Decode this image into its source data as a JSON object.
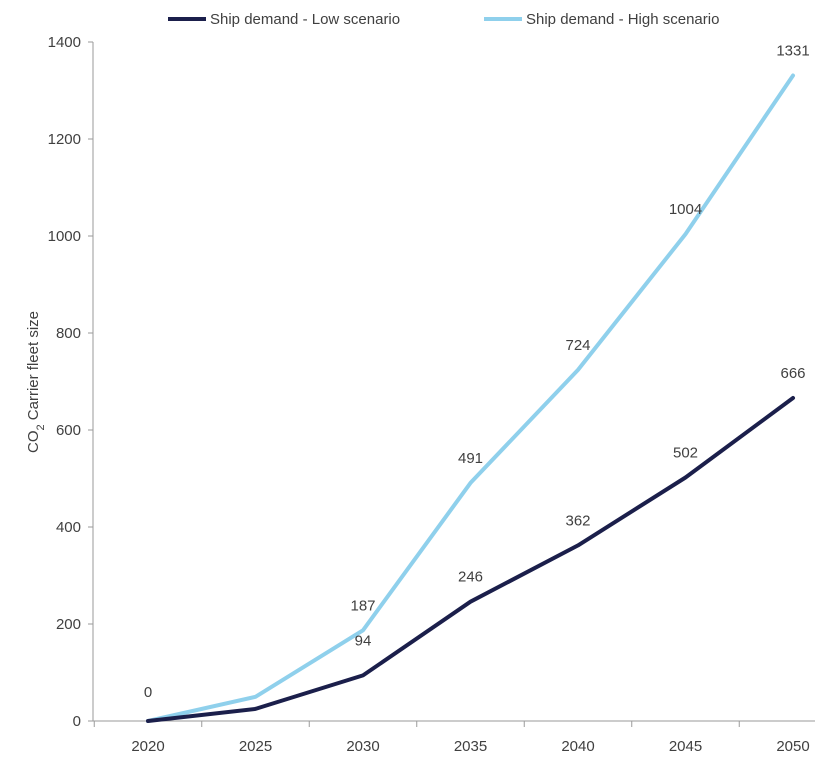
{
  "chart_data": {
    "type": "line",
    "x": [
      2020,
      2025,
      2030,
      2035,
      2040,
      2045,
      2050
    ],
    "series": [
      {
        "name": "Ship demand - Low scenario",
        "color": "#1b1f4b",
        "values": [
          0,
          25,
          94,
          246,
          362,
          502,
          666
        ],
        "labels": [
          "",
          "",
          "94",
          "246",
          "362",
          "502",
          "666"
        ]
      },
      {
        "name": "Ship demand - High scenario",
        "color": "#8fd0ec",
        "values": [
          0,
          50,
          187,
          491,
          724,
          1004,
          1331
        ],
        "labels": [
          "0",
          "",
          "187",
          "491",
          "724",
          "1004",
          "1331"
        ]
      }
    ],
    "ylabel_main": "CO",
    "ylabel_sub": "2",
    "ylabel_rest": " Carrier fleet size",
    "ylim": [
      0,
      1400
    ],
    "yticks": [
      0,
      200,
      400,
      600,
      800,
      1000,
      1200,
      1400
    ],
    "grid": false,
    "legend_position": "top"
  }
}
